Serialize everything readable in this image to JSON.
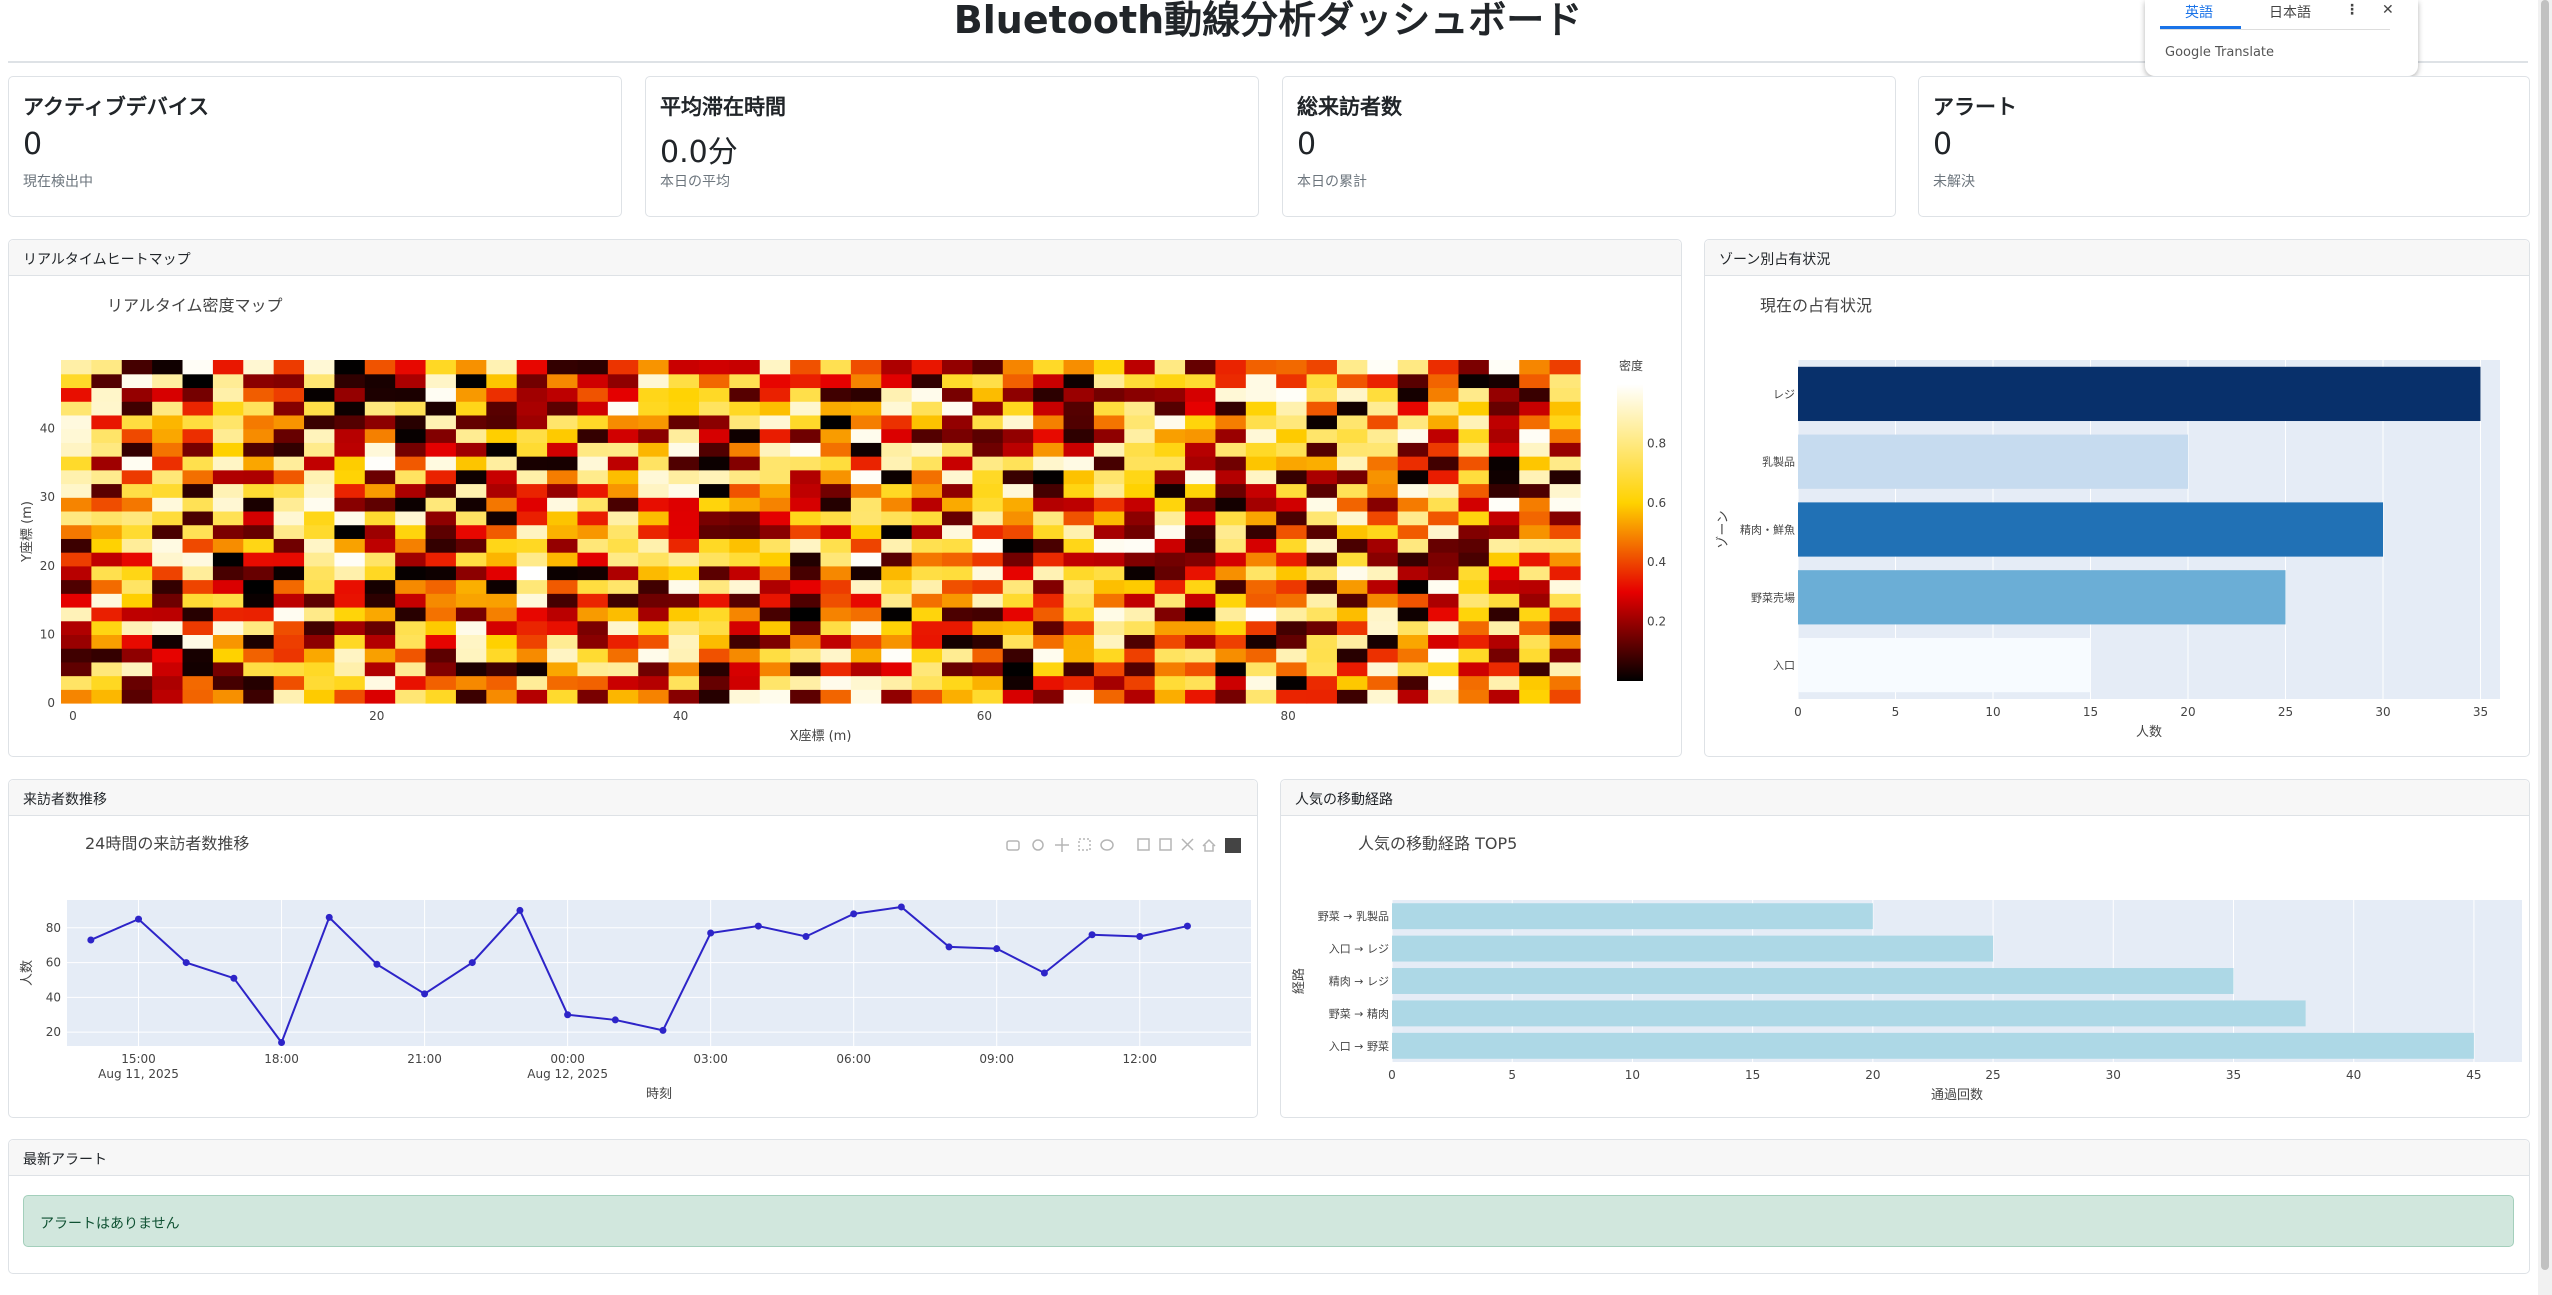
{
  "page": {
    "title": "Bluetooth動線分析ダッシュボード"
  },
  "translate": {
    "tab_english": "英語",
    "tab_japanese": "日本語",
    "brand": "Google Translate"
  },
  "kpis": [
    {
      "title": "アクティブデバイス",
      "value": "0",
      "sub": "現在検出中"
    },
    {
      "title": "平均滞在時間",
      "value": "0.0分",
      "sub": "本日の平均"
    },
    {
      "title": "総来訪者数",
      "value": "0",
      "sub": "本日の累計"
    },
    {
      "title": "アラート",
      "value": "0",
      "sub": "未解決"
    }
  ],
  "heatmap_card": {
    "header": "リアルタイムヒートマップ"
  },
  "zone_card": {
    "header": "ゾーン別占有状況"
  },
  "visitors_card": {
    "header": "来訪者数推移"
  },
  "routes_card": {
    "header": "人気の移動経路"
  },
  "alerts_card": {
    "header": "最新アラート",
    "message": "アラートはありません"
  },
  "colors": {
    "zone_bars": [
      "#08306b",
      "#c6dbef",
      "#2171b5",
      "#6baed6",
      "#f7fbff"
    ],
    "line": "#2d24c8",
    "route_bar": "#add8e6",
    "plot_bg": "#e5ecf6"
  },
  "chart_data": [
    {
      "type": "heatmap",
      "title": "リアルタイム密度マップ",
      "xlabel": "X座標 (m)",
      "ylabel": "Y座標 (m)",
      "xlim": [
        0,
        100
      ],
      "ylim": [
        0,
        50
      ],
      "xticks": [
        0,
        20,
        40,
        60,
        80
      ],
      "yticks": [
        0,
        10,
        20,
        30,
        40
      ],
      "colorbar_title": "密度",
      "colorbar_ticks": [
        0.2,
        0.4,
        0.6,
        0.8
      ],
      "colorscale": "hot",
      "z_range": [
        0,
        1
      ]
    },
    {
      "type": "bar",
      "orientation": "horizontal",
      "title": "現在の占有状況",
      "xlabel": "人数",
      "ylabel": "ゾーン",
      "categories": [
        "入口",
        "野菜売場",
        "精肉・鮮魚",
        "乳製品",
        "レジ"
      ],
      "values": [
        15,
        25,
        30,
        20,
        35
      ],
      "xlim": [
        0,
        36
      ],
      "xticks": [
        0,
        5,
        10,
        15,
        20,
        25,
        30,
        35
      ]
    },
    {
      "type": "line",
      "title": "24時間の来訪者数推移",
      "xlabel": "時刻",
      "ylabel": "人数",
      "x": [
        "2025-08-11 14:00",
        "2025-08-11 15:00",
        "2025-08-11 16:00",
        "2025-08-11 17:00",
        "2025-08-11 18:00",
        "2025-08-11 19:00",
        "2025-08-11 20:00",
        "2025-08-11 21:00",
        "2025-08-11 22:00",
        "2025-08-11 23:00",
        "2025-08-12 00:00",
        "2025-08-12 01:00",
        "2025-08-12 02:00",
        "2025-08-12 03:00",
        "2025-08-12 04:00",
        "2025-08-12 05:00",
        "2025-08-12 06:00",
        "2025-08-12 07:00",
        "2025-08-12 08:00",
        "2025-08-12 09:00",
        "2025-08-12 10:00",
        "2025-08-12 11:00",
        "2025-08-12 12:00",
        "2025-08-12 13:00"
      ],
      "y": [
        73,
        85,
        60,
        51,
        14,
        86,
        59,
        42,
        60,
        90,
        30,
        27,
        21,
        77,
        81,
        75,
        88,
        92,
        69,
        68,
        54,
        76,
        75,
        81
      ],
      "ylim": [
        12,
        96
      ],
      "yticks": [
        20,
        40,
        60,
        80
      ],
      "xtick_labels": [
        "15:00",
        "18:00",
        "21:00",
        "00:00",
        "03:00",
        "06:00",
        "09:00",
        "12:00"
      ],
      "xtick_sublabels": [
        "Aug 11, 2025",
        "",
        "",
        "Aug 12, 2025",
        "",
        "",
        "",
        ""
      ]
    },
    {
      "type": "bar",
      "orientation": "horizontal",
      "title": "人気の移動経路 TOP5",
      "xlabel": "通過回数",
      "ylabel": "経路",
      "categories": [
        "入口 → 野菜",
        "野菜 → 精肉",
        "精肉 → レジ",
        "入口 → レジ",
        "野菜 → 乳製品"
      ],
      "values": [
        45,
        38,
        35,
        25,
        20
      ],
      "xlim": [
        0,
        47
      ],
      "xticks": [
        0,
        5,
        10,
        15,
        20,
        25,
        30,
        35,
        40,
        45
      ]
    }
  ]
}
